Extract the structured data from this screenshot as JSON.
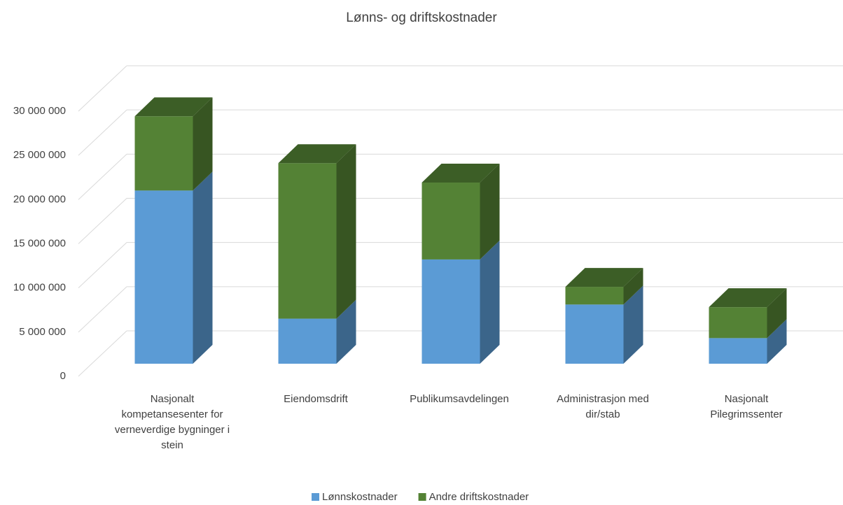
{
  "chart_data": {
    "type": "bar3d_stacked",
    "title": "Lønns- og driftskostnader",
    "categories": [
      "Nasjonalt kompetansesenter for verneverdige bygninger i stein",
      "Eiendomsdrift",
      "Publikumsavdelingen",
      "Administrasjon med dir/stab",
      "Nasjonalt Pilegrimssenter"
    ],
    "series": [
      {
        "name": "Lønnskostnader",
        "color": "#5b9bd5",
        "values": [
          19600000,
          5100000,
          11800000,
          6700000,
          2900000
        ]
      },
      {
        "name": "Andre driftskostnader",
        "color": "#548235",
        "values": [
          8400000,
          17600000,
          8700000,
          2000000,
          3500000
        ]
      }
    ],
    "ylim": [
      0,
      30000000
    ],
    "yticks": [
      {
        "value": 0,
        "label": "0"
      },
      {
        "value": 5000000,
        "label": "5 000 000"
      },
      {
        "value": 10000000,
        "label": "10 000 000"
      },
      {
        "value": 15000000,
        "label": "15 000 000"
      },
      {
        "value": 20000000,
        "label": "20 000 000"
      },
      {
        "value": 25000000,
        "label": "25 000 000"
      },
      {
        "value": 30000000,
        "label": "30 000 000"
      }
    ],
    "grid": true,
    "legend": "bottom"
  }
}
